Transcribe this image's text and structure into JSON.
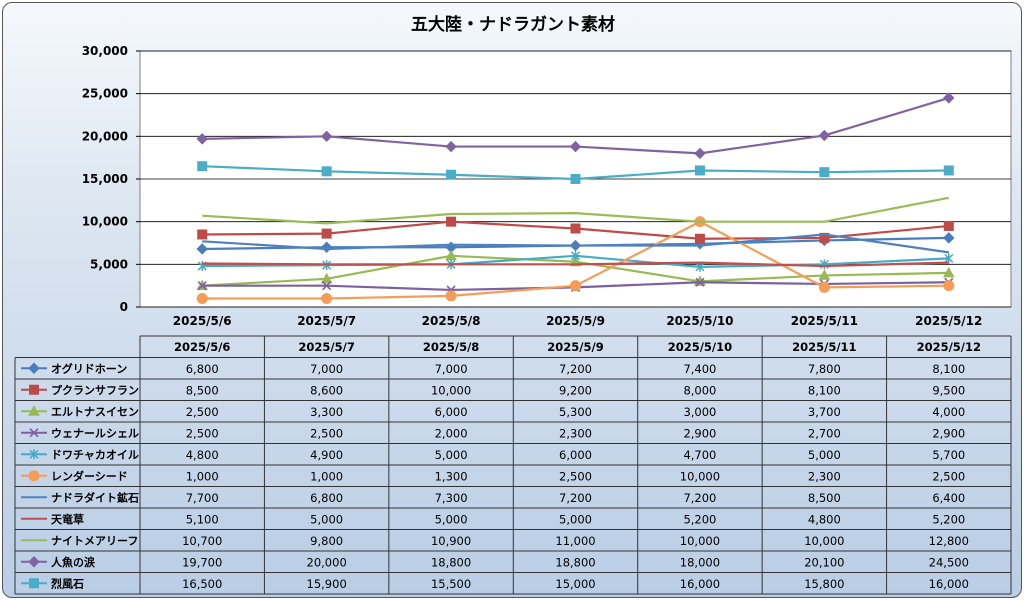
{
  "chart_data": {
    "type": "line",
    "title": "五大陸・ナドラガント素材",
    "ylim": [
      0,
      30000
    ],
    "yticks": [
      "30,000",
      "25,000",
      "20,000",
      "15,000",
      "10,000",
      "5,000",
      "0"
    ],
    "ytick_values": [
      30000,
      25000,
      20000,
      15000,
      10000,
      5000,
      0
    ],
    "categories": [
      "2025/5/6",
      "2025/5/7",
      "2025/5/8",
      "2025/5/9",
      "2025/5/10",
      "2025/5/11",
      "2025/5/12"
    ],
    "grid": true,
    "legend": "data-table",
    "series": [
      {
        "name": "オグリドホーン",
        "color": "#4a7ebb",
        "marker": "diamond",
        "values": [
          6800,
          7000,
          7000,
          7200,
          7400,
          7800,
          8100
        ],
        "labels": [
          "6,800",
          "7,000",
          "7,000",
          "7,200",
          "7,400",
          "7,800",
          "8,100"
        ]
      },
      {
        "name": "プクランサフラン",
        "color": "#be4b48",
        "marker": "square",
        "values": [
          8500,
          8600,
          10000,
          9200,
          8000,
          8100,
          9500
        ],
        "labels": [
          "8,500",
          "8,600",
          "10,000",
          "9,200",
          "8,000",
          "8,100",
          "9,500"
        ]
      },
      {
        "name": "エルトナスイセン",
        "color": "#98b954",
        "marker": "triangle",
        "values": [
          2500,
          3300,
          6000,
          5300,
          3000,
          3700,
          4000
        ],
        "labels": [
          "2,500",
          "3,300",
          "6,000",
          "5,300",
          "3,000",
          "3,700",
          "4,000"
        ]
      },
      {
        "name": "ウェナールシェル",
        "color": "#7d60a0",
        "marker": "x",
        "values": [
          2500,
          2500,
          2000,
          2300,
          2900,
          2700,
          2900
        ],
        "labels": [
          "2,500",
          "2,500",
          "2,000",
          "2,300",
          "2,900",
          "2,700",
          "2,900"
        ]
      },
      {
        "name": "ドワチャカオイル",
        "color": "#46aac5",
        "marker": "star",
        "values": [
          4800,
          4900,
          5000,
          6000,
          4700,
          5000,
          5700
        ],
        "labels": [
          "4,800",
          "4,900",
          "5,000",
          "6,000",
          "4,700",
          "5,000",
          "5,700"
        ]
      },
      {
        "name": "レンダーシード",
        "color": "#f59d56",
        "marker": "circle",
        "values": [
          1000,
          1000,
          1300,
          2500,
          10000,
          2300,
          2500
        ],
        "labels": [
          "1,000",
          "1,000",
          "1,300",
          "2,500",
          "10,000",
          "2,300",
          "2,500"
        ]
      },
      {
        "name": "ナドラダイト鉱石",
        "color": "#4f81bd",
        "marker": "line",
        "values": [
          7700,
          6800,
          7300,
          7200,
          7200,
          8500,
          6400
        ],
        "labels": [
          "7,700",
          "6,800",
          "7,300",
          "7,200",
          "7,200",
          "8,500",
          "6,400"
        ]
      },
      {
        "name": "天竜草",
        "color": "#c0504d",
        "marker": "line",
        "values": [
          5100,
          5000,
          5000,
          5000,
          5200,
          4800,
          5200
        ],
        "labels": [
          "5,100",
          "5,000",
          "5,000",
          "5,000",
          "5,200",
          "4,800",
          "5,200"
        ]
      },
      {
        "name": "ナイトメアリーフ",
        "color": "#9bbb59",
        "marker": "line",
        "values": [
          10700,
          9800,
          10900,
          11000,
          10000,
          10000,
          12800
        ],
        "labels": [
          "10,700",
          "9,800",
          "10,900",
          "11,000",
          "10,000",
          "10,000",
          "12,800"
        ]
      },
      {
        "name": "人魚の涙",
        "color": "#8064a2",
        "marker": "diamond",
        "values": [
          19700,
          20000,
          18800,
          18800,
          18000,
          20100,
          24500
        ],
        "labels": [
          "19,700",
          "20,000",
          "18,800",
          "18,800",
          "18,000",
          "20,100",
          "24,500"
        ]
      },
      {
        "name": "烈風石",
        "color": "#4bacc6",
        "marker": "square",
        "values": [
          16500,
          15900,
          15500,
          15000,
          16000,
          15800,
          16000
        ],
        "labels": [
          "16,500",
          "15,900",
          "15,500",
          "15,000",
          "16,000",
          "15,800",
          "16,000"
        ]
      }
    ]
  }
}
